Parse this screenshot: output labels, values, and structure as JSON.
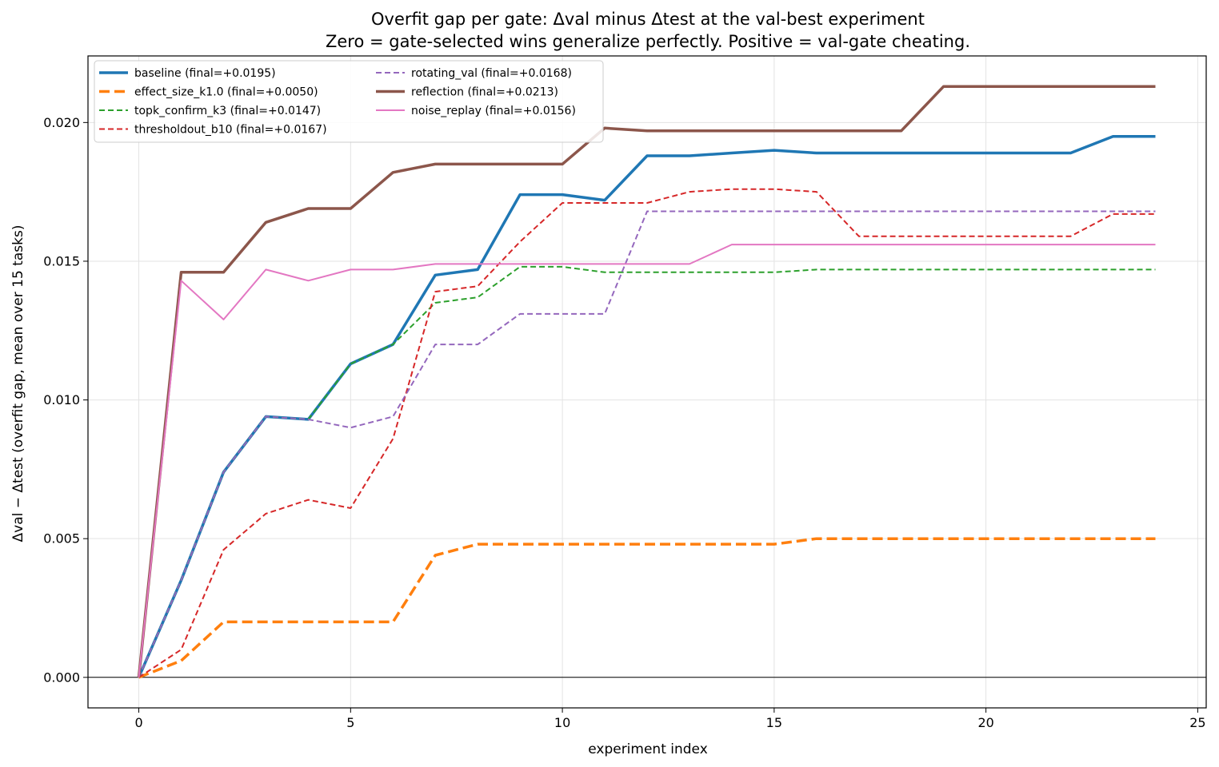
{
  "chart_data": {
    "type": "line",
    "title_line1": "Overfit gap per gate: Δval minus Δtest at the val-best experiment",
    "title_line2": "Zero = gate-selected wins generalize perfectly. Positive = val-gate cheating.",
    "xlabel": "experiment index",
    "ylabel": "Δval − Δtest  (overfit gap, mean over 15 tasks)",
    "xlim": [
      -1.2,
      25.2
    ],
    "ylim": [
      -0.0011,
      0.0224
    ],
    "xticks": [
      0,
      5,
      10,
      15,
      20,
      25
    ],
    "xtick_labels": [
      "0",
      "5",
      "10",
      "15",
      "20",
      "25"
    ],
    "yticks": [
      0.0,
      0.005,
      0.01,
      0.015,
      0.02
    ],
    "ytick_labels": [
      "0.000",
      "0.005",
      "0.010",
      "0.015",
      "0.020"
    ],
    "grid": true,
    "zero_line": true,
    "legend_location": "top-left",
    "x": [
      0,
      1,
      2,
      3,
      4,
      5,
      6,
      7,
      8,
      9,
      10,
      11,
      12,
      13,
      14,
      15,
      16,
      17,
      18,
      19,
      20,
      21,
      22,
      23,
      24
    ],
    "series": [
      {
        "name": "baseline",
        "legend_label": "baseline  (final=+0.0195)",
        "color": "#1f77b4",
        "style": "solid",
        "weight": "thick",
        "values": [
          0.0,
          0.0035,
          0.0074,
          0.0094,
          0.0093,
          0.0113,
          0.012,
          0.0145,
          0.0147,
          0.0174,
          0.0174,
          0.0172,
          0.0188,
          0.0188,
          0.0189,
          0.019,
          0.0189,
          0.0189,
          0.0189,
          0.0189,
          0.0189,
          0.0189,
          0.0189,
          0.0195,
          0.0195
        ]
      },
      {
        "name": "effect_size_k1.0",
        "legend_label": "effect_size_k1.0  (final=+0.0050)",
        "color": "#ff7f0e",
        "style": "dashed",
        "weight": "thick",
        "values": [
          0.0,
          0.0006,
          0.002,
          0.002,
          0.002,
          0.002,
          0.002,
          0.0044,
          0.0048,
          0.0048,
          0.0048,
          0.0048,
          0.0048,
          0.0048,
          0.0048,
          0.0048,
          0.005,
          0.005,
          0.005,
          0.005,
          0.005,
          0.005,
          0.005,
          0.005,
          0.005
        ]
      },
      {
        "name": "topk_confirm_k3",
        "legend_label": "topk_confirm_k3  (final=+0.0147)",
        "color": "#2ca02c",
        "style": "dashed",
        "weight": "thin",
        "values": [
          0.0,
          0.0035,
          0.0074,
          0.0094,
          0.0093,
          0.0113,
          0.012,
          0.0135,
          0.0137,
          0.0148,
          0.0148,
          0.0146,
          0.0146,
          0.0146,
          0.0146,
          0.0146,
          0.0147,
          0.0147,
          0.0147,
          0.0147,
          0.0147,
          0.0147,
          0.0147,
          0.0147,
          0.0147
        ]
      },
      {
        "name": "thresholdout_b10",
        "legend_label": "thresholdout_b10  (final=+0.0167)",
        "color": "#d62728",
        "style": "dashed",
        "weight": "thin",
        "values": [
          0.0,
          0.001,
          0.0046,
          0.0059,
          0.0064,
          0.0061,
          0.0086,
          0.0139,
          0.0141,
          0.0157,
          0.0171,
          0.0171,
          0.0171,
          0.0175,
          0.0176,
          0.0176,
          0.0175,
          0.0159,
          0.0159,
          0.0159,
          0.0159,
          0.0159,
          0.0159,
          0.0167,
          0.0167
        ]
      },
      {
        "name": "rotating_val",
        "legend_label": "rotating_val  (final=+0.0168)",
        "color": "#9467bd",
        "style": "dashed",
        "weight": "thin",
        "values": [
          0.0,
          0.0035,
          0.0074,
          0.0094,
          0.0093,
          0.009,
          0.0094,
          0.012,
          0.012,
          0.0131,
          0.0131,
          0.0131,
          0.0168,
          0.0168,
          0.0168,
          0.0168,
          0.0168,
          0.0168,
          0.0168,
          0.0168,
          0.0168,
          0.0168,
          0.0168,
          0.0168,
          0.0168
        ]
      },
      {
        "name": "reflection",
        "legend_label": "reflection  (final=+0.0213)",
        "color": "#8c564b",
        "style": "solid",
        "weight": "thick",
        "values": [
          0.0,
          0.0146,
          0.0146,
          0.0164,
          0.0169,
          0.0169,
          0.0182,
          0.0185,
          0.0185,
          0.0185,
          0.0185,
          0.0198,
          0.0197,
          0.0197,
          0.0197,
          0.0197,
          0.0197,
          0.0197,
          0.0197,
          0.0213,
          0.0213,
          0.0213,
          0.0213,
          0.0213,
          0.0213
        ]
      },
      {
        "name": "noise_replay",
        "legend_label": "noise_replay  (final=+0.0156)",
        "color": "#e377c2",
        "style": "solid",
        "weight": "thin",
        "values": [
          0.0,
          0.0143,
          0.0129,
          0.0147,
          0.0143,
          0.0147,
          0.0147,
          0.0149,
          0.0149,
          0.0149,
          0.0149,
          0.0149,
          0.0149,
          0.0149,
          0.0156,
          0.0156,
          0.0156,
          0.0156,
          0.0156,
          0.0156,
          0.0156,
          0.0156,
          0.0156,
          0.0156,
          0.0156
        ]
      }
    ]
  }
}
